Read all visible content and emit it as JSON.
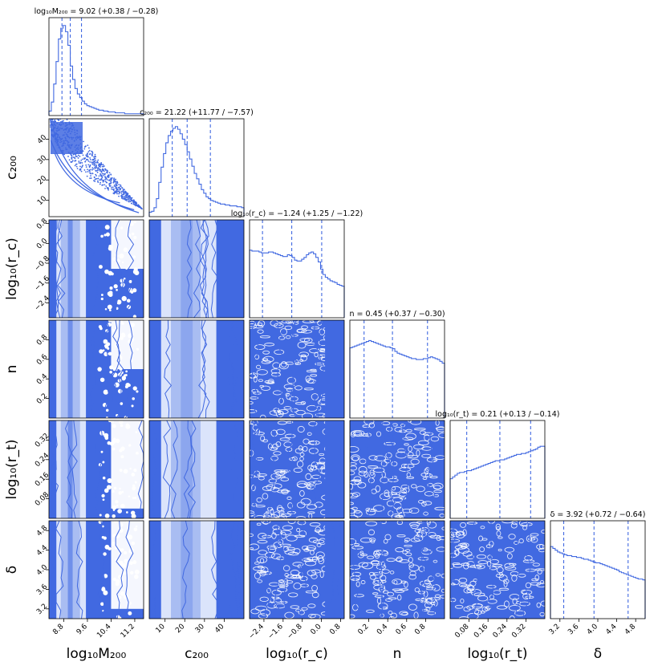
{
  "colors": {
    "main": "#4169e1",
    "fill_light": "#dbe4fb",
    "fill_mid": "#a9bdf2",
    "fill_dark": "#6f8fea"
  },
  "chart_data": {
    "type": "corner",
    "parameters": [
      {
        "label": "log₁₀M₂₀₀",
        "lo": 8.3,
        "hi": 11.5,
        "ticks": [
          "8.8",
          "9.6",
          "10.4",
          "11.2"
        ],
        "tick_values": [
          8.8,
          9.6,
          10.4,
          11.2
        ],
        "title": "log₁₀M₂₀₀ = 9.02 (+0.38 / −0.28)",
        "quantiles": [
          8.74,
          9.02,
          9.4
        ]
      },
      {
        "label": "c₂₀₀",
        "lo": 2,
        "hi": 50,
        "ticks": [
          "10",
          "20",
          "30",
          "40"
        ],
        "tick_values": [
          10,
          20,
          30,
          40
        ],
        "title": "c₂₀₀ = 21.22 (+11.77 / −7.57)",
        "quantiles": [
          13.65,
          21.22,
          32.99
        ]
      },
      {
        "label": "log₁₀(r_c)",
        "lo": -3.0,
        "hi": 0.95,
        "ticks": [
          "−2.4",
          "−1.6",
          "−0.8",
          "0.0",
          "0.8"
        ],
        "tick_values": [
          -2.4,
          -1.6,
          -0.8,
          0.0,
          0.8
        ],
        "title": "log₁₀(r_c) = −1.24 (+1.25 / −1.22)",
        "quantiles": [
          -2.46,
          -1.24,
          0.01
        ]
      },
      {
        "label": "n",
        "lo": 0.0,
        "hi": 1.0,
        "ticks": [
          "0.2",
          "0.4",
          "0.6",
          "0.8"
        ],
        "tick_values": [
          0.2,
          0.4,
          0.6,
          0.8
        ],
        "title": "n = 0.45 (+0.37 / −0.30)",
        "quantiles": [
          0.15,
          0.45,
          0.82
        ]
      },
      {
        "label": "log₁₀(r_t)",
        "lo": 0.0,
        "hi": 0.4,
        "ticks": [
          "0.08",
          "0.16",
          "0.24",
          "0.32"
        ],
        "tick_values": [
          0.08,
          0.16,
          0.24,
          0.32
        ],
        "title": "log₁₀(r_t) = 0.21 (+0.13 / −0.14)",
        "quantiles": [
          0.07,
          0.21,
          0.34
        ]
      },
      {
        "label": "δ",
        "lo": 3.0,
        "hi": 5.0,
        "ticks": [
          "3.2",
          "3.6",
          "4.0",
          "4.4",
          "4.8"
        ],
        "tick_values": [
          3.2,
          3.6,
          4.0,
          4.4,
          4.8
        ],
        "title": "δ = 3.92 (+0.72 / −0.64)",
        "quantiles": [
          3.28,
          3.92,
          4.64
        ]
      }
    ],
    "histograms": [
      [
        0.05,
        0.15,
        0.35,
        0.6,
        0.85,
        0.97,
        1.0,
        0.93,
        0.78,
        0.55,
        0.4,
        0.3,
        0.24,
        0.2,
        0.16,
        0.13,
        0.11,
        0.1,
        0.09,
        0.08,
        0.07,
        0.06,
        0.06,
        0.05,
        0.05,
        0.04,
        0.04,
        0.04,
        0.03,
        0.03,
        0.03,
        0.03,
        0.02,
        0.02,
        0.02,
        0.02,
        0.02,
        0.02,
        0.02,
        0.02
      ],
      [
        0.05,
        0.06,
        0.1,
        0.2,
        0.38,
        0.55,
        0.7,
        0.82,
        0.9,
        0.95,
        0.98,
        1.0,
        0.97,
        0.92,
        0.86,
        0.8,
        0.72,
        0.64,
        0.56,
        0.48,
        0.42,
        0.36,
        0.3,
        0.26,
        0.22,
        0.2,
        0.18,
        0.17,
        0.16,
        0.15,
        0.14,
        0.14,
        0.13,
        0.13,
        0.12,
        0.12,
        0.12,
        0.11,
        0.11,
        0.1
      ],
      [
        0.75,
        0.74,
        0.74,
        0.74,
        0.73,
        0.72,
        0.72,
        0.72,
        0.73,
        0.73,
        0.72,
        0.71,
        0.7,
        0.69,
        0.68,
        0.68,
        0.7,
        0.69,
        0.67,
        0.64,
        0.63,
        0.63,
        0.65,
        0.67,
        0.7,
        0.72,
        0.73,
        0.71,
        0.67,
        0.62,
        0.54,
        0.48,
        0.45,
        0.43,
        0.41,
        0.4,
        0.39,
        0.37,
        0.36,
        0.35
      ],
      [
        0.78,
        0.79,
        0.8,
        0.81,
        0.82,
        0.83,
        0.84,
        0.85,
        0.86,
        0.85,
        0.84,
        0.83,
        0.82,
        0.81,
        0.8,
        0.79,
        0.79,
        0.78,
        0.77,
        0.74,
        0.72,
        0.71,
        0.7,
        0.69,
        0.68,
        0.67,
        0.66,
        0.66,
        0.65,
        0.65,
        0.65,
        0.66,
        0.66,
        0.67,
        0.68,
        0.67,
        0.66,
        0.65,
        0.63,
        0.61
      ],
      [
        0.44,
        0.46,
        0.48,
        0.5,
        0.51,
        0.51,
        0.52,
        0.53,
        0.53,
        0.54,
        0.55,
        0.56,
        0.57,
        0.58,
        0.59,
        0.6,
        0.61,
        0.62,
        0.63,
        0.64,
        0.64,
        0.65,
        0.65,
        0.66,
        0.67,
        0.68,
        0.69,
        0.7,
        0.71,
        0.71,
        0.72,
        0.72,
        0.73,
        0.74,
        0.75,
        0.76,
        0.77,
        0.79,
        0.8,
        0.8
      ],
      [
        0.8,
        0.78,
        0.76,
        0.74,
        0.73,
        0.72,
        0.71,
        0.7,
        0.7,
        0.69,
        0.69,
        0.68,
        0.68,
        0.67,
        0.66,
        0.66,
        0.65,
        0.64,
        0.63,
        0.62,
        0.62,
        0.61,
        0.6,
        0.59,
        0.58,
        0.57,
        0.56,
        0.55,
        0.54,
        0.52,
        0.51,
        0.5,
        0.49,
        0.48,
        0.47,
        0.46,
        0.45,
        0.44,
        0.44,
        0.43
      ]
    ]
  }
}
